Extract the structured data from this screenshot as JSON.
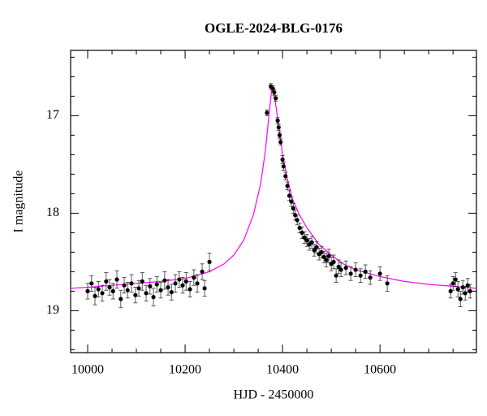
{
  "chart_data": {
    "type": "scatter",
    "title": "OGLE-2024-BLG-0176",
    "xlabel": "HJD - 2450000",
    "ylabel": "I magnitude",
    "color": "#000000",
    "model_color": "#ff00ff",
    "xlim": [
      9965,
      10798
    ],
    "ylim": [
      19.43,
      16.33
    ],
    "y_inverted": true,
    "xticks": [
      10000,
      10200,
      10400,
      10600
    ],
    "x_minor_ticks": [
      10050,
      10100,
      10150,
      10250,
      10300,
      10350,
      10450,
      10500,
      10550,
      10650,
      10700,
      10750
    ],
    "yticks": [
      17,
      18,
      19
    ],
    "y_minor_ticks": [
      16.4,
      16.6,
      16.8,
      17.2,
      17.4,
      17.6,
      17.8,
      18.2,
      18.4,
      18.6,
      18.8,
      19.2,
      19.4
    ],
    "x": [
      10000,
      10008,
      10015,
      10022,
      10030,
      10038,
      10045,
      10052,
      10060,
      10068,
      10075,
      10082,
      10090,
      10098,
      10105,
      10112,
      10120,
      10128,
      10135,
      10142,
      10150,
      10158,
      10165,
      10172,
      10180,
      10188,
      10195,
      10202,
      10210,
      10218,
      10225,
      10235,
      10240,
      10250,
      10368,
      10376,
      10380,
      10383,
      10386,
      10390,
      10392,
      10394,
      10396,
      10400,
      10402,
      10406,
      10410,
      10414,
      10418,
      10422,
      10426,
      10430,
      10435,
      10440,
      10445,
      10450,
      10455,
      10460,
      10465,
      10470,
      10475,
      10480,
      10485,
      10490,
      10495,
      10500,
      10505,
      10510,
      10515,
      10520,
      10530,
      10540,
      10550,
      10560,
      10570,
      10580,
      10600,
      10615,
      10745,
      10750,
      10755,
      10760,
      10765,
      10770,
      10775,
      10780,
      10785
    ],
    "values": [
      18.8,
      18.72,
      18.85,
      18.78,
      18.82,
      18.7,
      18.76,
      18.8,
      18.68,
      18.88,
      18.74,
      18.79,
      18.72,
      18.84,
      18.77,
      18.7,
      18.82,
      18.75,
      18.86,
      18.73,
      18.79,
      18.69,
      18.76,
      18.81,
      18.72,
      18.68,
      18.74,
      18.7,
      18.78,
      18.66,
      18.72,
      18.6,
      18.77,
      18.5,
      16.97,
      16.7,
      16.72,
      16.76,
      16.82,
      17.05,
      17.12,
      17.2,
      17.27,
      17.45,
      17.52,
      17.62,
      17.72,
      17.82,
      17.88,
      17.95,
      18.02,
      18.07,
      18.15,
      18.2,
      18.25,
      18.28,
      18.32,
      18.3,
      18.38,
      18.35,
      18.42,
      18.4,
      18.45,
      18.48,
      18.44,
      18.52,
      18.5,
      18.64,
      18.55,
      18.58,
      18.56,
      18.62,
      18.58,
      18.64,
      18.6,
      18.66,
      18.62,
      18.72,
      18.8,
      18.72,
      18.68,
      18.78,
      18.88,
      18.76,
      18.82,
      18.74,
      18.8
    ],
    "errors": [
      0.08,
      0.08,
      0.09,
      0.08,
      0.08,
      0.09,
      0.08,
      0.08,
      0.09,
      0.09,
      0.08,
      0.08,
      0.09,
      0.08,
      0.08,
      0.09,
      0.08,
      0.08,
      0.09,
      0.08,
      0.08,
      0.09,
      0.08,
      0.08,
      0.09,
      0.08,
      0.08,
      0.09,
      0.08,
      0.08,
      0.09,
      0.08,
      0.08,
      0.09,
      0.03,
      0.03,
      0.03,
      0.03,
      0.03,
      0.03,
      0.03,
      0.03,
      0.03,
      0.04,
      0.04,
      0.04,
      0.04,
      0.05,
      0.05,
      0.05,
      0.05,
      0.05,
      0.05,
      0.06,
      0.06,
      0.06,
      0.06,
      0.06,
      0.06,
      0.06,
      0.06,
      0.06,
      0.06,
      0.07,
      0.07,
      0.07,
      0.07,
      0.07,
      0.07,
      0.07,
      0.07,
      0.07,
      0.07,
      0.07,
      0.07,
      0.07,
      0.07,
      0.08,
      0.07,
      0.07,
      0.07,
      0.08,
      0.08,
      0.07,
      0.07,
      0.07,
      0.07
    ],
    "model_x": [
      9965,
      10000,
      10050,
      10100,
      10150,
      10200,
      10250,
      10280,
      10300,
      10320,
      10340,
      10355,
      10365,
      10372,
      10378,
      10385,
      10392,
      10400,
      10410,
      10420,
      10435,
      10450,
      10475,
      10500,
      10525,
      10550,
      10600,
      10650,
      10700,
      10750,
      10798
    ],
    "model_values": [
      18.77,
      18.76,
      18.74,
      18.72,
      18.7,
      18.67,
      18.6,
      18.52,
      18.43,
      18.28,
      18.02,
      17.7,
      17.35,
      17.0,
      16.72,
      16.85,
      17.1,
      17.4,
      17.65,
      17.85,
      18.02,
      18.15,
      18.32,
      18.43,
      18.52,
      18.58,
      18.65,
      18.7,
      18.73,
      18.75,
      18.77
    ]
  }
}
